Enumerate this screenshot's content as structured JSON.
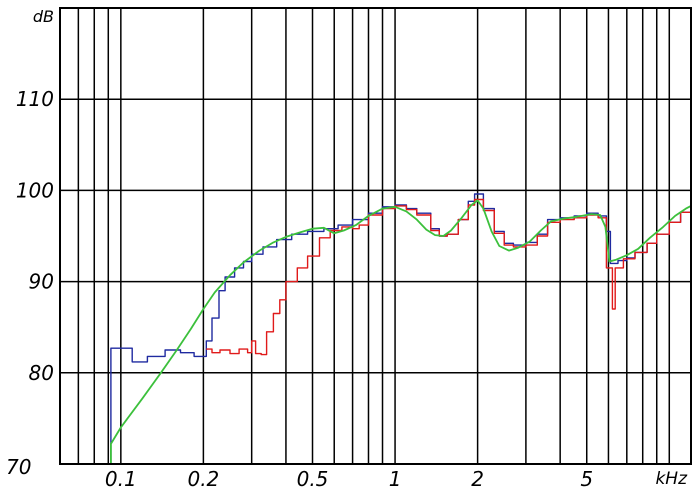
{
  "chart_data": {
    "type": "line",
    "xscale": "log",
    "xlim": [
      0.06,
      12.0
    ],
    "ylim": [
      70,
      120
    ],
    "grid": true,
    "legend": "none",
    "title": "",
    "xlabel": "kHz",
    "ylabel": "dB",
    "yticks": [
      {
        "value": 70,
        "label": "70"
      },
      {
        "value": 80,
        "label": "80"
      },
      {
        "value": 90,
        "label": "90"
      },
      {
        "value": 100,
        "label": "100"
      },
      {
        "value": 110,
        "label": "110"
      }
    ],
    "xticks": [
      {
        "value": 0.1,
        "label": "0.1"
      },
      {
        "value": 0.2,
        "label": "0.2"
      },
      {
        "value": 0.5,
        "label": "0.5"
      },
      {
        "value": 1,
        "label": "1"
      },
      {
        "value": 2,
        "label": "2"
      },
      {
        "value": 5,
        "label": "5"
      }
    ],
    "x_gridlines": [
      0.07,
      0.08,
      0.09,
      0.1,
      0.2,
      0.3,
      0.4,
      0.5,
      0.6,
      0.7,
      0.8,
      0.9,
      1,
      2,
      3,
      4,
      5,
      6,
      7,
      8,
      9,
      10
    ],
    "series": [
      {
        "color": "#1f2aa0",
        "step": true,
        "points": [
          [
            0.06,
            70
          ],
          [
            0.092,
            70
          ],
          [
            0.092,
            82.7
          ],
          [
            0.102,
            82.7
          ],
          [
            0.11,
            81.2
          ],
          [
            0.125,
            81.8
          ],
          [
            0.145,
            82.5
          ],
          [
            0.165,
            82.2
          ],
          [
            0.185,
            81.8
          ],
          [
            0.205,
            83.5
          ],
          [
            0.215,
            86
          ],
          [
            0.228,
            89
          ],
          [
            0.24,
            90.5
          ],
          [
            0.26,
            91.5
          ],
          [
            0.28,
            92.2
          ],
          [
            0.3,
            93
          ],
          [
            0.33,
            93.8
          ],
          [
            0.37,
            94.6
          ],
          [
            0.42,
            95.2
          ],
          [
            0.48,
            95.5
          ],
          [
            0.55,
            95.8
          ],
          [
            0.62,
            96.2
          ],
          [
            0.7,
            96.8
          ],
          [
            0.8,
            97.5
          ],
          [
            0.9,
            98.2
          ],
          [
            1.0,
            98.4
          ],
          [
            1.1,
            98.0
          ],
          [
            1.2,
            97.5
          ],
          [
            1.35,
            95.8
          ],
          [
            1.45,
            95.0
          ],
          [
            1.55,
            95.2
          ],
          [
            1.7,
            96.8
          ],
          [
            1.85,
            98.8
          ],
          [
            1.95,
            99.6
          ],
          [
            2.1,
            98.0
          ],
          [
            2.3,
            95.5
          ],
          [
            2.5,
            94.2
          ],
          [
            2.7,
            94.0
          ],
          [
            3.0,
            94.3
          ],
          [
            3.3,
            95.2
          ],
          [
            3.6,
            96.8
          ],
          [
            4.0,
            97.0
          ],
          [
            4.5,
            97.2
          ],
          [
            5.0,
            97.5
          ],
          [
            5.5,
            97.2
          ],
          [
            5.9,
            95.5
          ],
          [
            6.1,
            92.0
          ],
          [
            6.5,
            92.3
          ],
          [
            7.0,
            92.6
          ],
          [
            7.5,
            93.2
          ],
          [
            8.3,
            94.2
          ],
          [
            9.0,
            95.2
          ],
          [
            10.0,
            96.5
          ],
          [
            11.0,
            97.6
          ],
          [
            12.0,
            98.2
          ]
        ]
      },
      {
        "color": "#e01a1a",
        "step": true,
        "points": [
          [
            0.205,
            82.6
          ],
          [
            0.215,
            82.2
          ],
          [
            0.23,
            82.5
          ],
          [
            0.25,
            82.1
          ],
          [
            0.27,
            82.6
          ],
          [
            0.29,
            82.2
          ],
          [
            0.3,
            83.5
          ],
          [
            0.31,
            82.1
          ],
          [
            0.325,
            82.0
          ],
          [
            0.34,
            84.5
          ],
          [
            0.36,
            86.5
          ],
          [
            0.38,
            88.0
          ],
          [
            0.4,
            90.0
          ],
          [
            0.44,
            91.5
          ],
          [
            0.48,
            92.8
          ],
          [
            0.53,
            94.8
          ],
          [
            0.58,
            95.6
          ],
          [
            0.64,
            96.0
          ],
          [
            0.7,
            95.8
          ],
          [
            0.74,
            96.2
          ],
          [
            0.8,
            97.3
          ],
          [
            0.9,
            98.0
          ],
          [
            1.0,
            98.3
          ],
          [
            1.1,
            97.9
          ],
          [
            1.2,
            97.3
          ],
          [
            1.35,
            95.6
          ],
          [
            1.45,
            95.0
          ],
          [
            1.55,
            95.2
          ],
          [
            1.7,
            96.8
          ],
          [
            1.85,
            98.4
          ],
          [
            1.95,
            99.0
          ],
          [
            2.1,
            97.8
          ],
          [
            2.3,
            95.3
          ],
          [
            2.5,
            94.0
          ],
          [
            2.7,
            93.8
          ],
          [
            3.0,
            94.0
          ],
          [
            3.3,
            95.0
          ],
          [
            3.6,
            96.5
          ],
          [
            4.0,
            96.8
          ],
          [
            4.5,
            97.0
          ],
          [
            5.0,
            97.3
          ],
          [
            5.5,
            97.0
          ],
          [
            5.9,
            91.5
          ],
          [
            6.2,
            87.0
          ],
          [
            6.35,
            91.5
          ],
          [
            6.8,
            92.5
          ],
          [
            7.5,
            93.2
          ],
          [
            8.3,
            94.2
          ],
          [
            9.0,
            95.2
          ],
          [
            10.0,
            96.5
          ],
          [
            11.0,
            97.6
          ],
          [
            12.0,
            98.2
          ]
        ]
      },
      {
        "color": "#3cc03c",
        "step": false,
        "points": [
          [
            0.06,
            70
          ],
          [
            0.092,
            70
          ],
          [
            0.092,
            72.2
          ],
          [
            0.1,
            74.0
          ],
          [
            0.12,
            77.2
          ],
          [
            0.14,
            80.0
          ],
          [
            0.16,
            82.5
          ],
          [
            0.18,
            84.8
          ],
          [
            0.2,
            87.0
          ],
          [
            0.22,
            88.8
          ],
          [
            0.25,
            90.7
          ],
          [
            0.28,
            92.1
          ],
          [
            0.32,
            93.4
          ],
          [
            0.36,
            94.3
          ],
          [
            0.4,
            94.9
          ],
          [
            0.45,
            95.4
          ],
          [
            0.5,
            95.8
          ],
          [
            0.55,
            95.9
          ],
          [
            0.6,
            95.3
          ],
          [
            0.65,
            95.6
          ],
          [
            0.72,
            96.2
          ],
          [
            0.8,
            97.2
          ],
          [
            0.9,
            98.0
          ],
          [
            1.0,
            98.2
          ],
          [
            1.1,
            97.7
          ],
          [
            1.2,
            96.8
          ],
          [
            1.3,
            95.7
          ],
          [
            1.4,
            95.1
          ],
          [
            1.5,
            95.0
          ],
          [
            1.6,
            95.6
          ],
          [
            1.75,
            97.0
          ],
          [
            1.9,
            98.4
          ],
          [
            2.0,
            98.9
          ],
          [
            2.1,
            98.0
          ],
          [
            2.25,
            95.5
          ],
          [
            2.4,
            93.9
          ],
          [
            2.6,
            93.4
          ],
          [
            2.8,
            93.7
          ],
          [
            3.1,
            94.4
          ],
          [
            3.4,
            95.6
          ],
          [
            3.7,
            96.6
          ],
          [
            4.1,
            96.9
          ],
          [
            4.6,
            97.1
          ],
          [
            5.2,
            97.4
          ],
          [
            5.6,
            97.3
          ],
          [
            5.85,
            96.0
          ],
          [
            6.05,
            92.2
          ],
          [
            6.4,
            92.4
          ],
          [
            7.0,
            92.9
          ],
          [
            7.7,
            93.6
          ],
          [
            8.5,
            94.8
          ],
          [
            9.5,
            96.0
          ],
          [
            10.5,
            97.2
          ],
          [
            11.5,
            98.0
          ],
          [
            12.0,
            98.3
          ]
        ]
      }
    ]
  }
}
